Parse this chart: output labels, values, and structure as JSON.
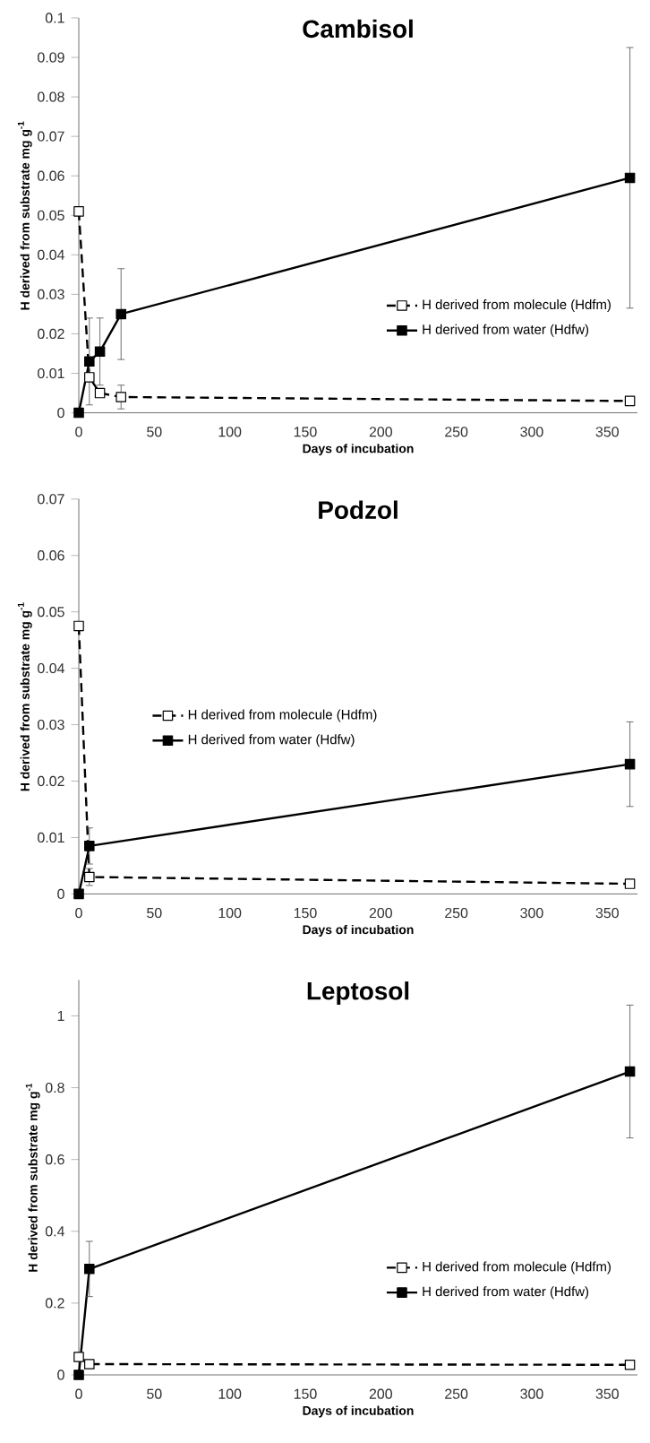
{
  "chart_data": [
    {
      "type": "line",
      "title": "Cambisol",
      "xlabel": "Days of incubation",
      "ylabel": "H derived from substrate mg g$^{-1}$",
      "xlim": [
        0,
        370
      ],
      "xticks": [
        0,
        50,
        100,
        150,
        200,
        250,
        300,
        350
      ],
      "ylim": [
        0,
        0.1
      ],
      "yticks": [
        0,
        0.01,
        0.02,
        0.03,
        0.04,
        0.05,
        0.06,
        0.07,
        0.08,
        0.09,
        0.1
      ],
      "legend": "right",
      "grid": false,
      "marker": "square",
      "series": [
        {
          "name": "H derived from molecule (Hdfm)",
          "color": "#000000",
          "line_style": "dashed",
          "x": [
            0,
            7,
            14,
            28,
            365
          ],
          "values": [
            0.051,
            0.009,
            0.005,
            0.004,
            0.003
          ],
          "errors": [
            null,
            null,
            null,
            0.003,
            null
          ]
        },
        {
          "name": "H derived from water (Hdfw)",
          "color": "#000000",
          "line_style": "solid",
          "x": [
            0,
            7,
            14,
            28,
            365
          ],
          "values": [
            0,
            0.013,
            0.0155,
            0.025,
            0.0595
          ],
          "errors": [
            null,
            0.011,
            0.0085,
            0.0115,
            0.033
          ]
        }
      ]
    },
    {
      "type": "line",
      "title": "Podzol",
      "xlabel": "Days of incubation",
      "ylabel": "H derived from substrate mg g$^{-1}$",
      "xlim": [
        0,
        370
      ],
      "xticks": [
        0,
        50,
        100,
        150,
        200,
        250,
        300,
        350
      ],
      "ylim": [
        0,
        0.07
      ],
      "yticks": [
        0,
        0.01,
        0.02,
        0.03,
        0.04,
        0.05,
        0.06,
        0.07
      ],
      "legend": "left",
      "grid": false,
      "marker": "square",
      "series": [
        {
          "name": "H derived from molecule (Hdfm)",
          "color": "#000000",
          "line_style": "dashed",
          "x": [
            0,
            7,
            365
          ],
          "values": [
            0.0475,
            0.003,
            0.0018
          ],
          "errors": [
            null,
            0.0015,
            null
          ]
        },
        {
          "name": "H derived from water (Hdfw)",
          "color": "#000000",
          "line_style": "solid",
          "x": [
            0,
            7,
            365
          ],
          "values": [
            0,
            0.0085,
            0.023
          ],
          "errors": [
            null,
            0.0032,
            0.0075
          ]
        }
      ]
    },
    {
      "type": "line",
      "title": "Leptosol",
      "xlabel": "Days of incubation",
      "ylabel": "H derived from substrate mg g$^{-1}$",
      "xlim": [
        0,
        370
      ],
      "xticks": [
        0,
        50,
        100,
        150,
        200,
        250,
        300,
        350
      ],
      "ylim": [
        0,
        1.1
      ],
      "yticks": [
        0,
        0.2,
        0.4,
        0.6,
        0.8,
        1
      ],
      "legend": "right",
      "grid": false,
      "marker": "square",
      "series": [
        {
          "name": "H derived from molecule (Hdfm)",
          "color": "#000000",
          "line_style": "dashed",
          "x": [
            0,
            7,
            365
          ],
          "values": [
            0.05,
            0.03,
            0.028
          ]
        },
        {
          "name": "H derived from water (Hdfw)",
          "color": "#000000",
          "line_style": "solid",
          "x": [
            0,
            7,
            365
          ],
          "values": [
            0,
            0.295,
            0.845
          ],
          "errors": [
            null,
            0.077,
            0.185
          ]
        }
      ]
    }
  ]
}
